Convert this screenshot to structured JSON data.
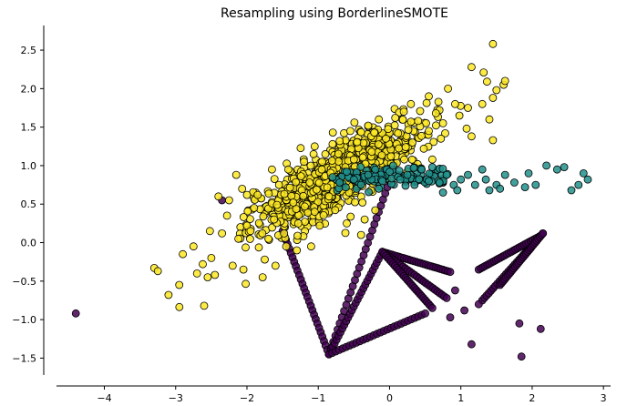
{
  "chart_data": {
    "type": "scatter",
    "title": "Resampling using BorderlineSMOTE",
    "xlabel": "",
    "ylabel": "",
    "xlim": [
      -4.85,
      3.1
    ],
    "ylim": [
      -1.72,
      2.82
    ],
    "xticks": [
      -4,
      -3,
      -2,
      -1,
      0,
      1,
      2,
      3
    ],
    "yticks": [
      -1.5,
      -1.0,
      -0.5,
      0.0,
      0.5,
      1.0,
      1.5,
      2.0,
      2.5
    ],
    "ytick_labels": [
      "−1.5",
      "−1.0",
      "−0.5",
      "0.0",
      "0.5",
      "1.0",
      "1.5",
      "2.0",
      "2.5"
    ],
    "xtick_labels": [
      "−4",
      "−3",
      "−2",
      "−1",
      "0",
      "1",
      "2",
      "3"
    ],
    "grid": false,
    "legend": "none",
    "spines": {
      "top": false,
      "right": false
    },
    "series": [
      {
        "color": "#fde725",
        "description_class": "majority",
        "points": [
          [
            1.45,
            2.58
          ],
          [
            1.15,
            2.28
          ],
          [
            1.32,
            2.21
          ],
          [
            1.6,
            2.05
          ],
          [
            1.62,
            2.1
          ],
          [
            1.5,
            1.98
          ],
          [
            1.45,
            1.88
          ],
          [
            0.82,
            2.0
          ],
          [
            0.92,
            1.8
          ],
          [
            1.1,
            1.75
          ],
          [
            1.3,
            1.8
          ],
          [
            1.4,
            1.6
          ],
          [
            1.45,
            1.33
          ],
          [
            1.15,
            1.38
          ],
          [
            0.7,
            1.72
          ],
          [
            0.55,
            1.9
          ],
          [
            0.98,
            1.65
          ],
          [
            0.75,
            1.55
          ],
          [
            1.08,
            1.48
          ],
          [
            0.78,
            1.42
          ],
          [
            -3.3,
            -0.33
          ],
          [
            -3.25,
            -0.37
          ],
          [
            -3.1,
            -0.68
          ],
          [
            -2.95,
            -0.55
          ],
          [
            -2.9,
            -0.15
          ],
          [
            -2.75,
            -0.05
          ],
          [
            -2.6,
            -0.82
          ],
          [
            -2.62,
            -0.28
          ],
          [
            -2.55,
            -0.45
          ],
          [
            -2.5,
            -0.2
          ],
          [
            -2.45,
            -0.42
          ],
          [
            -2.35,
            0.12
          ],
          [
            -2.28,
            0.35
          ],
          [
            -2.2,
            -0.3
          ],
          [
            -2.12,
            0.05
          ],
          [
            -2.05,
            -0.35
          ],
          [
            -2.0,
            0.22
          ],
          [
            -1.9,
            0.45
          ],
          [
            -1.85,
            0.62
          ],
          [
            -1.78,
            -0.45
          ],
          [
            -1.75,
            -0.22
          ],
          [
            -1.62,
            0.3
          ],
          [
            -1.55,
            0.75
          ],
          [
            -1.48,
            0.12
          ],
          [
            -1.42,
            0.95
          ],
          [
            -1.35,
            0.52
          ],
          [
            -1.28,
            0.25
          ],
          [
            -1.2,
            1.05
          ],
          [
            -1.12,
            0.78
          ],
          [
            -1.05,
            0.4
          ],
          [
            -0.98,
            0.22
          ],
          [
            -0.95,
            0.95
          ],
          [
            -0.9,
            1.15
          ],
          [
            -0.85,
            0.6
          ],
          [
            -0.8,
            1.28
          ],
          [
            -0.75,
            0.85
          ],
          [
            -0.7,
            1.32
          ],
          [
            -0.62,
            0.98
          ],
          [
            -0.55,
            1.45
          ],
          [
            -0.5,
            1.08
          ],
          [
            -0.45,
            0.75
          ],
          [
            -0.38,
            0.52
          ],
          [
            -0.3,
            1.52
          ],
          [
            -0.25,
            1.18
          ],
          [
            -0.2,
            0.42
          ],
          [
            -0.15,
            1.6
          ],
          [
            -0.1,
            0.9
          ],
          [
            -0.05,
            1.35
          ],
          [
            0.02,
            1.12
          ],
          [
            0.08,
            1.62
          ],
          [
            0.12,
            1.42
          ],
          [
            0.2,
            1.7
          ],
          [
            0.25,
            0.92
          ],
          [
            0.32,
            1.3
          ],
          [
            0.4,
            1.58
          ],
          [
            0.48,
            1.22
          ],
          [
            0.55,
            1.45
          ],
          [
            0.6,
            1.08
          ],
          [
            0.65,
            1.68
          ],
          [
            0.72,
            1.35
          ],
          [
            -2.15,
            0.88
          ],
          [
            -2.0,
            0.62
          ],
          [
            -1.95,
            0.15
          ],
          [
            -1.7,
            0.05
          ],
          [
            -1.6,
            -0.3
          ],
          [
            -1.45,
            -0.05
          ],
          [
            -1.3,
            -0.1
          ],
          [
            -1.1,
            -0.05
          ],
          [
            -0.6,
            0.25
          ],
          [
            -0.4,
            0.1
          ],
          [
            -2.4,
            0.6
          ],
          [
            -2.25,
            0.55
          ],
          [
            -2.52,
            0.15
          ],
          [
            -2.7,
            -0.4
          ],
          [
            -1.65,
            0.95
          ],
          [
            -1.05,
            1.25
          ],
          [
            -0.35,
            0.3
          ],
          [
            0.3,
            1.8
          ]
        ]
      },
      {
        "color": "#21918c",
        "description_class": "middle",
        "points": [
          [
            -0.7,
            0.78
          ],
          [
            -0.6,
            0.92
          ],
          [
            -0.5,
            0.82
          ],
          [
            -0.4,
            0.75
          ],
          [
            -0.3,
            0.88
          ],
          [
            -0.2,
            0.95
          ],
          [
            -0.1,
            0.8
          ],
          [
            0.0,
            0.92
          ],
          [
            0.05,
            1.0
          ],
          [
            0.15,
            0.82
          ],
          [
            0.25,
            0.88
          ],
          [
            0.35,
            0.75
          ],
          [
            0.45,
            0.95
          ],
          [
            0.55,
            0.8
          ],
          [
            0.7,
            0.78
          ],
          [
            0.8,
            0.88
          ],
          [
            0.9,
            0.75
          ],
          [
            1.0,
            0.82
          ],
          [
            1.1,
            0.88
          ],
          [
            0.75,
            0.65
          ],
          [
            0.95,
            0.68
          ],
          [
            1.2,
            0.75
          ],
          [
            1.35,
            0.82
          ],
          [
            1.5,
            0.75
          ],
          [
            1.62,
            0.88
          ],
          [
            1.75,
            0.78
          ],
          [
            1.9,
            0.72
          ],
          [
            2.05,
            0.75
          ],
          [
            2.2,
            1.0
          ],
          [
            2.35,
            0.95
          ],
          [
            2.45,
            0.98
          ],
          [
            2.55,
            0.68
          ],
          [
            2.65,
            0.75
          ],
          [
            2.72,
            0.9
          ],
          [
            2.78,
            0.82
          ],
          [
            1.95,
            0.9
          ],
          [
            1.55,
            0.7
          ],
          [
            1.4,
            0.68
          ],
          [
            -0.8,
            0.85
          ],
          [
            -0.15,
            0.7
          ],
          [
            0.6,
            0.98
          ],
          [
            1.3,
            0.95
          ]
        ]
      },
      {
        "color": "#440154",
        "description_class": "minority",
        "points": [
          [
            -4.4,
            -0.92
          ],
          [
            -2.35,
            0.55
          ],
          [
            1.05,
            -0.88
          ],
          [
            1.25,
            -0.8
          ],
          [
            1.82,
            -1.05
          ],
          [
            2.12,
            -1.12
          ],
          [
            1.15,
            -1.32
          ],
          [
            1.85,
            -1.48
          ],
          [
            0.85,
            -0.97
          ],
          [
            0.92,
            -0.62
          ]
        ],
        "segments": [
          [
            [
              -1.5,
              0.15
            ],
            [
              -0.85,
              -1.45
            ]
          ],
          [
            [
              -0.85,
              -1.45
            ],
            [
              0.0,
              0.8
            ]
          ],
          [
            [
              -0.85,
              -1.45
            ],
            [
              -0.1,
              -0.12
            ]
          ],
          [
            [
              -0.85,
              -1.45
            ],
            [
              0.5,
              -0.92
            ]
          ],
          [
            [
              -0.1,
              -0.12
            ],
            [
              0.85,
              -0.38
            ]
          ],
          [
            [
              -0.1,
              -0.12
            ],
            [
              0.8,
              -0.72
            ]
          ],
          [
            [
              -0.1,
              -0.12
            ],
            [
              0.6,
              -0.85
            ]
          ],
          [
            [
              1.3,
              -0.75
            ],
            [
              2.15,
              0.12
            ]
          ],
          [
            [
              1.25,
              -0.35
            ],
            [
              2.1,
              0.08
            ]
          ],
          [
            [
              1.55,
              -0.55
            ],
            [
              2.15,
              0.12
            ]
          ]
        ]
      }
    ]
  }
}
